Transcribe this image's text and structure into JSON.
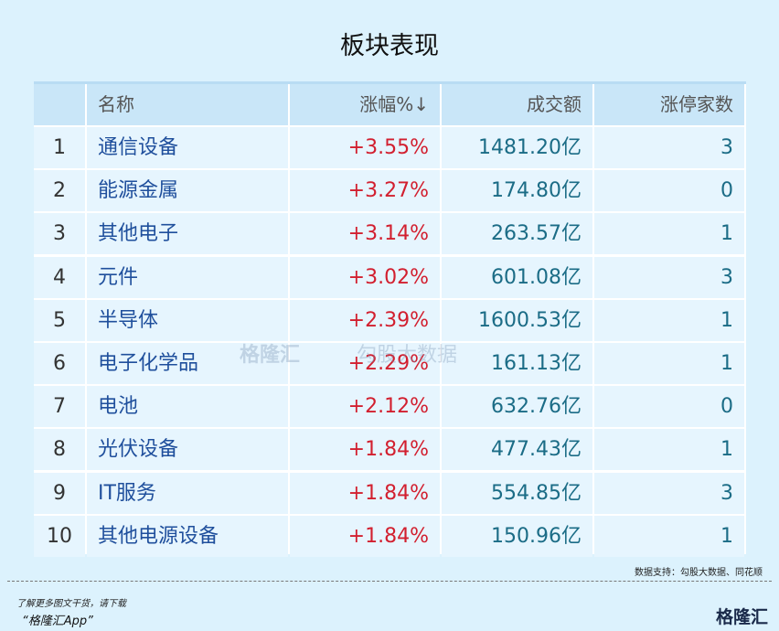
{
  "header": {
    "title": "板块表现"
  },
  "table": {
    "columns": [
      "名称",
      "涨幅%↓",
      "成交额",
      "涨停家数"
    ],
    "rows": [
      [
        "1",
        "通信设备",
        "+3.55%",
        "1481.20亿",
        "3"
      ],
      [
        "2",
        "能源金属",
        "+3.27%",
        "174.80亿",
        "0"
      ],
      [
        "3",
        "其他电子",
        "+3.14%",
        "263.57亿",
        "1"
      ],
      [
        "4",
        "元件",
        "+3.02%",
        "601.08亿",
        "3"
      ],
      [
        "5",
        "半导体",
        "+2.39%",
        "1600.53亿",
        "1"
      ],
      [
        "6",
        "电子化学品",
        "+2.29%",
        "161.13亿",
        "1"
      ],
      [
        "7",
        "电池",
        "+2.12%",
        "632.76亿",
        "0"
      ],
      [
        "8",
        "光伏设备",
        "+1.84%",
        "477.43亿",
        "1"
      ],
      [
        "9",
        "IT服务",
        "+1.84%",
        "554.85亿",
        "3"
      ],
      [
        "10",
        "其他电源设备",
        "+1.84%",
        "150.96亿",
        "1"
      ]
    ]
  },
  "watermark": {
    "brand": "格隆汇",
    "source": "勾股大数据"
  },
  "footer": {
    "source": "数据支持：勾股大数据、同花顺",
    "promo": "了解更多图文干货，请下载",
    "app": "“格隆汇App”",
    "logo": "格隆汇"
  }
}
